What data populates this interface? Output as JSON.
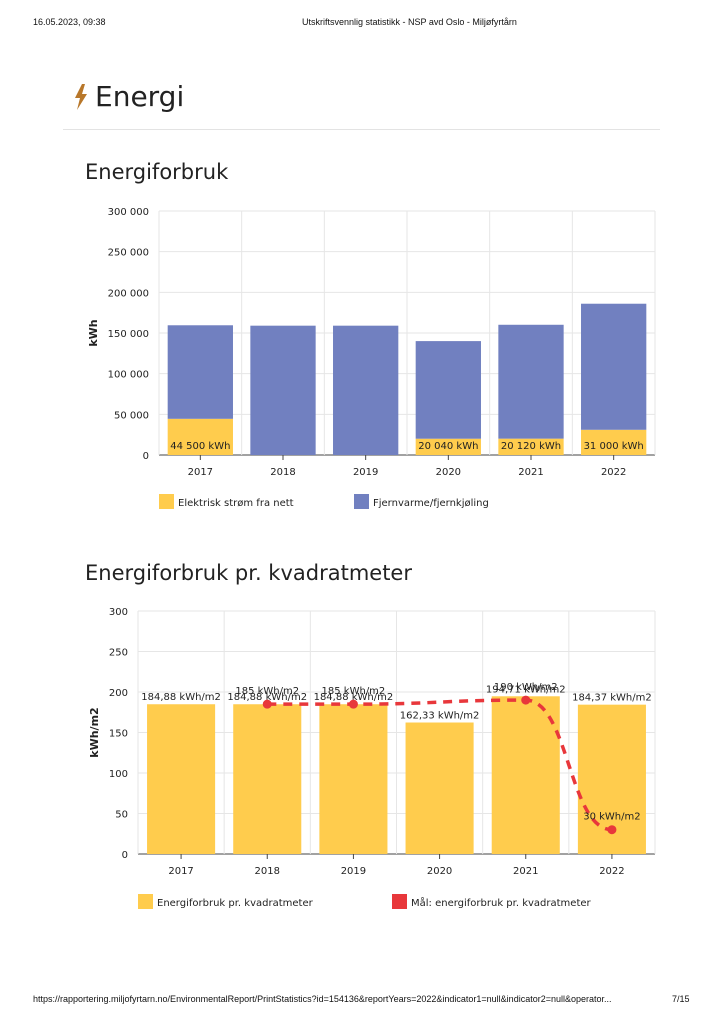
{
  "print_header": {
    "date": "16.05.2023, 09:38",
    "title": "Utskriftsvennlig statistikk - NSP avd Oslo - Miljøfyrtårn"
  },
  "section": {
    "icon": "lightning-bolt-icon",
    "title": "Energi"
  },
  "charts": {
    "energy_title": "Energiforbruk",
    "area_title": "Energiforbruk pr. kvadratmeter"
  },
  "colors": {
    "yellow": "#FFCC4D",
    "blue": "#7180C0",
    "red": "#E8373B",
    "grid": "#e6e6e6",
    "axis": "#444444"
  },
  "chart_data": [
    {
      "type": "bar",
      "stacked": true,
      "title": "Energiforbruk",
      "xlabel": "",
      "ylabel": "kWh",
      "ylim": [
        0,
        300000
      ],
      "yticks": [
        0,
        50000,
        100000,
        150000,
        200000,
        250000,
        300000
      ],
      "ytick_labels": [
        "0",
        "50 000",
        "100 000",
        "150 000",
        "200 000",
        "250 000",
        "300 000"
      ],
      "categories": [
        "2017",
        "2018",
        "2019",
        "2020",
        "2021",
        "2022"
      ],
      "series": [
        {
          "name": "Elektrisk strøm fra nett",
          "color": "#FFCC4D",
          "values": [
            44500,
            0,
            0,
            20040,
            20120,
            31000
          ],
          "labels": [
            "44 500 kWh",
            "",
            "",
            "20 040 kWh",
            "20 120 kWh",
            "31 000 kWh"
          ]
        },
        {
          "name": "Fjernvarme/fjernkjøling",
          "color": "#7180C0",
          "values": [
            115000,
            159000,
            159000,
            120000,
            140000,
            155000
          ],
          "labels": [
            "",
            "",
            "",
            "",
            "",
            ""
          ]
        }
      ],
      "legend": "bottom"
    },
    {
      "type": "bar",
      "title": "Energiforbruk pr. kvadratmeter",
      "xlabel": "",
      "ylabel": "kWh/m2",
      "ylim": [
        0,
        300
      ],
      "yticks": [
        0,
        50,
        100,
        150,
        200,
        250,
        300
      ],
      "ytick_labels": [
        "0",
        "50",
        "100",
        "150",
        "200",
        "250",
        "300"
      ],
      "categories": [
        "2017",
        "2018",
        "2019",
        "2020",
        "2021",
        "2022"
      ],
      "series": [
        {
          "name": "Energiforbruk pr. kvadratmeter",
          "color": "#FFCC4D",
          "values": [
            184.88,
            184.88,
            184.88,
            162.33,
            194.71,
            184.37
          ],
          "labels": [
            "184,88 kWh/m2",
            "184,88 kWh/m2",
            "184,88 kWh/m2",
            "162,33 kWh/m2",
            "194,71 kWh/m2",
            "184,37 kWh/m2"
          ]
        }
      ],
      "line_series": {
        "name": "Mål: energiforbruk pr. kvadratmeter",
        "color": "#E8373B",
        "style": "dashed",
        "points": [
          {
            "category": "2018",
            "value": 185,
            "label": "185 kWh/m2"
          },
          {
            "category": "2019",
            "value": 185,
            "label": "185 kWh/m2"
          },
          {
            "category": "2021",
            "value": 190,
            "label": "190 kWh/m2"
          },
          {
            "category": "2022",
            "value": 30,
            "label": "30 kWh/m2"
          }
        ]
      },
      "legend": "bottom"
    }
  ],
  "print_footer": {
    "url": "https://rapportering.miljofyrtarn.no/EnvironmentalReport/PrintStatistics?id=154136&reportYears=2022&indicator1=null&indicator2=null&operator...",
    "page": "7/15"
  }
}
